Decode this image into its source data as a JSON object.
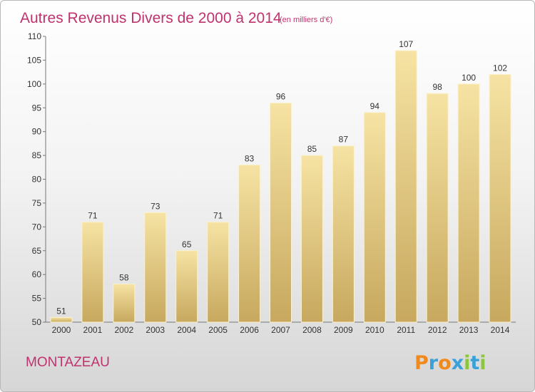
{
  "header": {
    "title": "Autres Revenus Divers de 2000 à 2014",
    "unit_note": "(en milliers d'€)"
  },
  "commune": "MONTAZEAU",
  "logo": {
    "text": "Proxiti",
    "letter_colors": [
      "#f08a1c",
      "#3aa0d8",
      "#f08a1c",
      "#3aa0d8",
      "#8cc63f",
      "#3aa0d8",
      "#8cc63f"
    ]
  },
  "chart_data": {
    "type": "bar",
    "title": "Autres Revenus Divers de 2000 à 2014",
    "categories": [
      "2000",
      "2001",
      "2002",
      "2003",
      "2004",
      "2005",
      "2006",
      "2007",
      "2008",
      "2009",
      "2010",
      "2011",
      "2012",
      "2013",
      "2014"
    ],
    "values": [
      51,
      71,
      58,
      73,
      65,
      71,
      83,
      96,
      85,
      87,
      94,
      107,
      98,
      100,
      102
    ],
    "ylim": [
      50,
      110
    ],
    "yticks": [
      50,
      55,
      60,
      65,
      70,
      75,
      80,
      85,
      90,
      95,
      100,
      105,
      110
    ],
    "grid": false,
    "bar_colors": {
      "light": "#f6e3a3",
      "dark": "#c7a85e"
    }
  }
}
